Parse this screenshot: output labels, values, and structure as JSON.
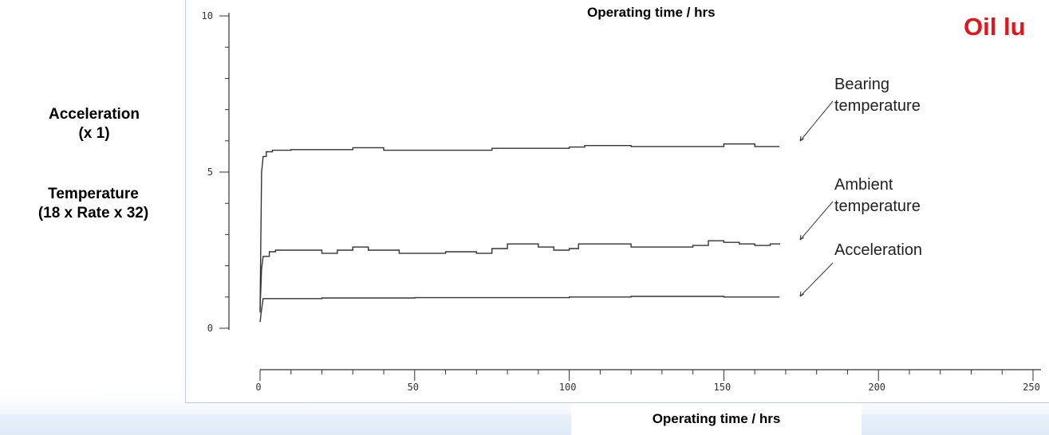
{
  "title": "Oil lu",
  "ylabel_acceleration": {
    "line1": "Acceleration",
    "line2": "(x 1)"
  },
  "ylabel_temperature": {
    "line1": "Temperature",
    "line2": "(18 x Rate x 32)"
  },
  "xlabel_top": "Operating time / hrs",
  "xlabel_bottom": "Operating time / hrs",
  "colors": {
    "title": "#e5141c",
    "trace": "#333333",
    "panel_border": "#b9cde6"
  },
  "chart_data": {
    "type": "line",
    "title": "Oil lu",
    "xlabel": "Operating time / hrs",
    "ylabel": "Acceleration (x 1) / Temperature (18 x Rate x 32)",
    "xlim": [
      0,
      250
    ],
    "ylim": [
      0,
      10
    ],
    "x_ticks": [
      0,
      50,
      100,
      150,
      200,
      250
    ],
    "x_tick_labels": [
      "0",
      "50",
      "100",
      "150",
      "200",
      "250"
    ],
    "y_ticks": [
      0,
      5,
      10
    ],
    "y_tick_labels": [
      "0",
      "5",
      "10"
    ],
    "grid": false,
    "legend": "none",
    "series": [
      {
        "name": "Bearing temperature",
        "x": [
          0,
          0.5,
          1,
          2,
          4,
          10,
          25,
          30,
          40,
          70,
          75,
          85,
          100,
          105,
          120,
          145,
          150,
          160,
          168
        ],
        "values": [
          0.5,
          5.0,
          5.5,
          5.65,
          5.7,
          5.72,
          5.72,
          5.78,
          5.7,
          5.7,
          5.76,
          5.76,
          5.8,
          5.85,
          5.82,
          5.82,
          5.9,
          5.82,
          5.82
        ],
        "label_lines": [
          "Bearing",
          "temperature"
        ]
      },
      {
        "name": "Ambient temperature",
        "x": [
          0,
          0.5,
          1,
          3,
          5,
          10,
          20,
          25,
          30,
          35,
          45,
          60,
          70,
          75,
          80,
          90,
          95,
          100,
          103,
          110,
          120,
          140,
          145,
          150,
          155,
          160,
          165,
          168
        ],
        "values": [
          0.6,
          1.9,
          2.3,
          2.45,
          2.5,
          2.5,
          2.4,
          2.5,
          2.6,
          2.5,
          2.4,
          2.45,
          2.4,
          2.55,
          2.7,
          2.6,
          2.5,
          2.55,
          2.7,
          2.7,
          2.6,
          2.65,
          2.8,
          2.75,
          2.7,
          2.65,
          2.7,
          2.72
        ],
        "label_lines": [
          "Ambient",
          "temperature"
        ]
      },
      {
        "name": "Acceleration",
        "x": [
          0,
          0.5,
          1,
          20,
          50,
          100,
          120,
          150,
          168
        ],
        "values": [
          0.2,
          0.6,
          0.95,
          0.97,
          0.98,
          1.0,
          1.02,
          1.0,
          1.0
        ],
        "label_lines": [
          "Acceleration"
        ]
      }
    ]
  }
}
